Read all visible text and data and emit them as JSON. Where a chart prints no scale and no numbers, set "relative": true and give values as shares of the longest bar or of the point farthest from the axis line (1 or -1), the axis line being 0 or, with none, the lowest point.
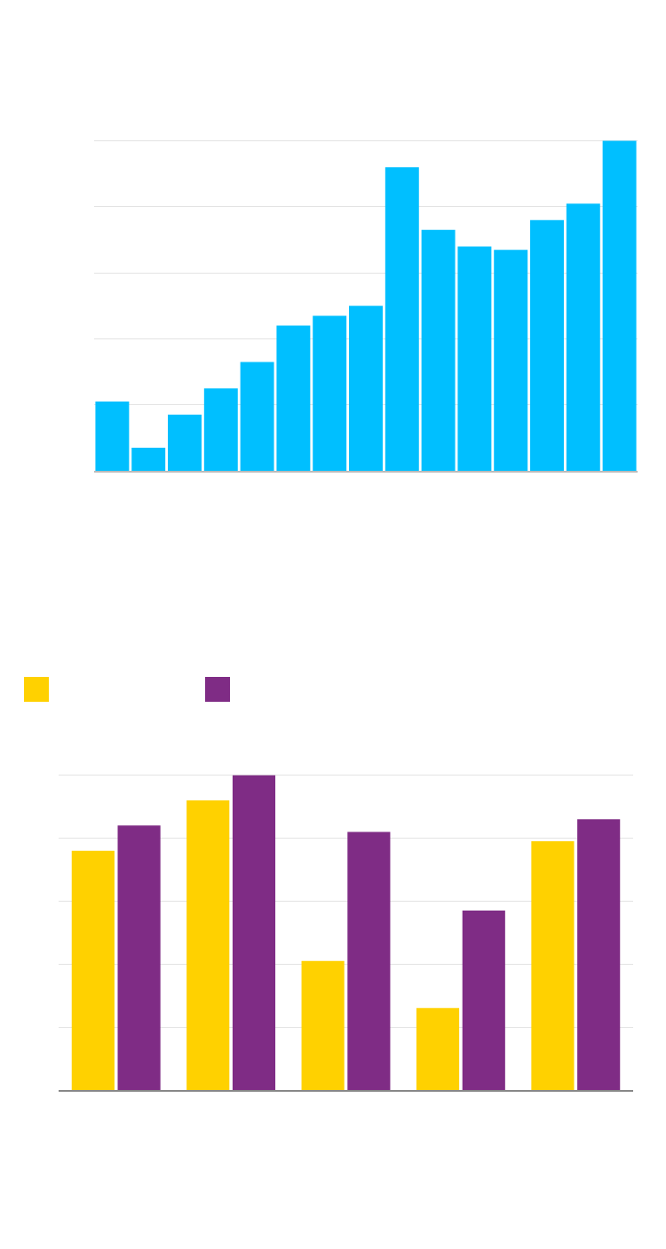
{
  "chart_data": [
    {
      "type": "bar",
      "categories": [
        null,
        null,
        null,
        null,
        null,
        null,
        null,
        null,
        null,
        null,
        null,
        null,
        null,
        null,
        null
      ],
      "values": [
        0.21,
        0.07,
        0.17,
        0.25,
        0.33,
        0.44,
        0.47,
        0.5,
        0.92,
        0.73,
        0.68,
        0.67,
        0.76,
        0.81,
        1
      ],
      "color": "#00bfff",
      "relative": true,
      "grid": "y"
    },
    {
      "type": "bar",
      "categories": [
        null,
        null,
        null,
        null,
        null
      ],
      "series": [
        {
          "color": "#ffd100",
          "values": [
            0.76,
            0.92,
            0.41,
            0.26,
            0.79
          ]
        },
        {
          "color": "#7f2c85",
          "values": [
            0.84,
            1,
            0.82,
            0.57,
            0.86
          ]
        }
      ],
      "relative": true,
      "grid": "y"
    }
  ]
}
